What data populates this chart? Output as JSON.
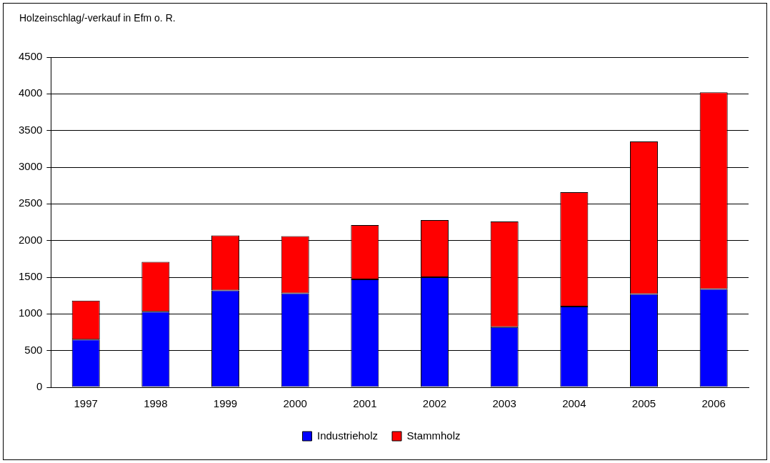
{
  "chart_data": {
    "type": "bar",
    "title": "Holzeinschlag/-verkauf in Efm o. R.",
    "categories": [
      "1997",
      "1998",
      "1999",
      "2000",
      "2001",
      "2002",
      "2003",
      "2004",
      "2005",
      "2006"
    ],
    "stacked": true,
    "series": [
      {
        "name": "Industrieholz",
        "color": "#0000ff",
        "values": [
          650,
          1030,
          1320,
          1280,
          1470,
          1500,
          820,
          1100,
          1270,
          1340
        ]
      },
      {
        "name": "Stammholz",
        "color": "#ff0000",
        "values": [
          530,
          680,
          750,
          780,
          740,
          780,
          1440,
          1560,
          2080,
          2680
        ]
      }
    ],
    "ylim": [
      0,
      4500
    ],
    "yticks": [
      0,
      500,
      1000,
      1500,
      2000,
      2500,
      3000,
      3500,
      4000,
      4500
    ],
    "grid": "y",
    "legend": "bottom"
  }
}
